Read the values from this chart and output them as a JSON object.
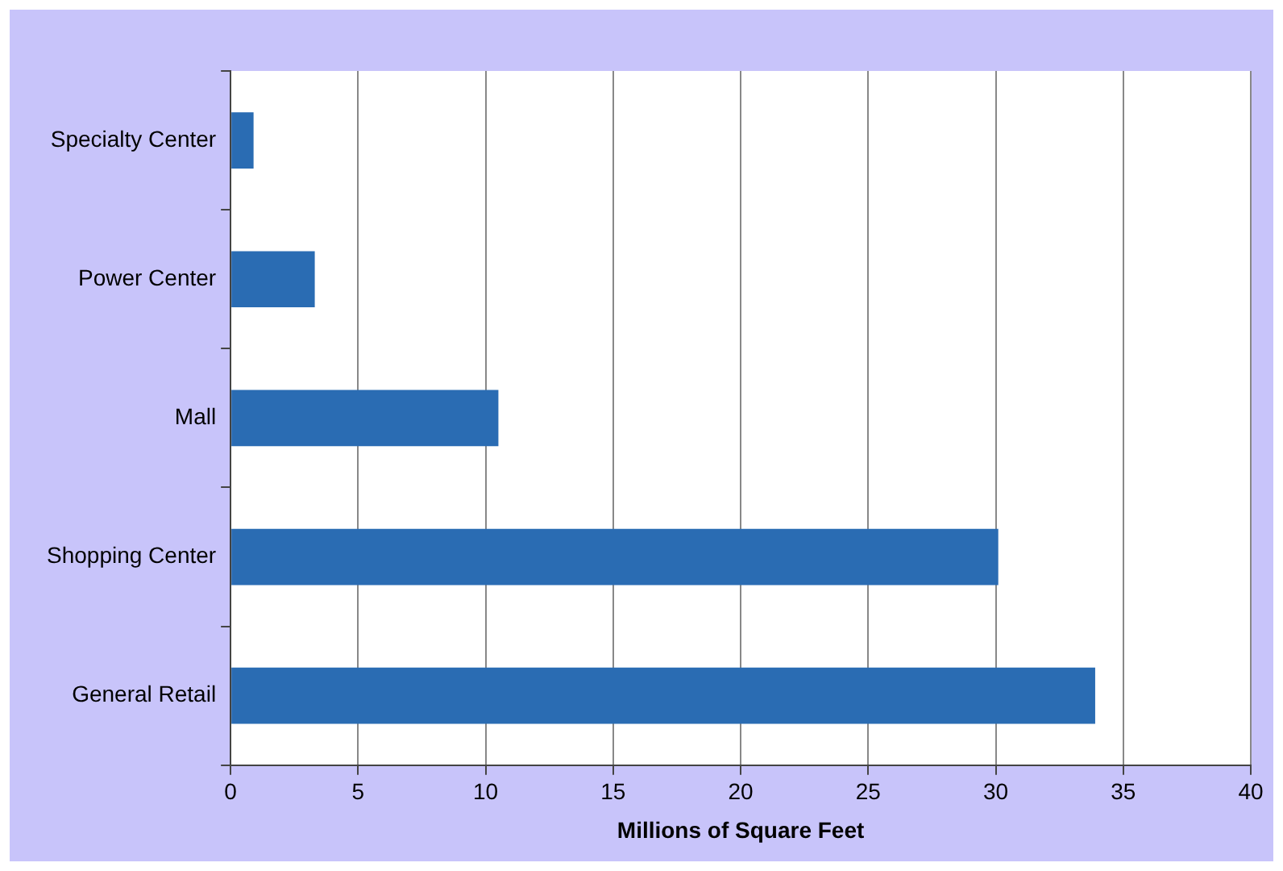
{
  "chart_data": {
    "type": "bar",
    "orientation": "horizontal",
    "xlabel": "Millions of Square Feet",
    "categories": [
      "Specialty Center",
      "Power Center",
      "Mall",
      "Shopping Center",
      "General Retail"
    ],
    "values": [
      0.9,
      3.3,
      10.5,
      30.1,
      33.9
    ],
    "color": "#2a6cb3",
    "xlim": [
      0,
      40
    ],
    "xticks": [
      0,
      5,
      10,
      15,
      20,
      25,
      30,
      35,
      40
    ],
    "grid": "x",
    "legend": false
  }
}
